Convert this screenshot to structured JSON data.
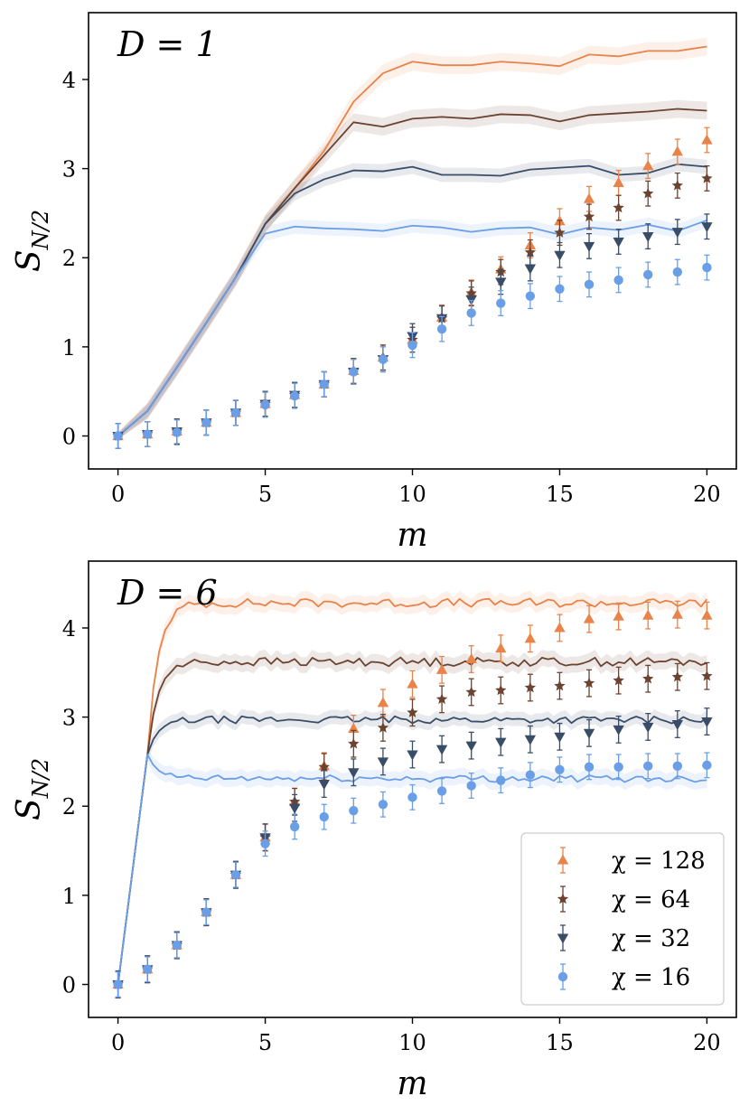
{
  "colors": {
    "chi128": "#E8834A",
    "chi64": "#6B4330",
    "chi32": "#3A4D68",
    "chi16": "#6A9EE6"
  },
  "chart_data": [
    {
      "type": "line",
      "annotation": "D = 1",
      "xlabel": "m",
      "ylabel": "S_{N/2}",
      "xlim": [
        -1,
        21
      ],
      "ylim": [
        -0.37,
        4.75
      ],
      "xticks": [
        "0",
        "5",
        "10",
        "15",
        "20"
      ],
      "yticks": [
        "0",
        "1",
        "2",
        "3",
        "4"
      ],
      "series": [
        {
          "name": "χ = 128",
          "color_key": "chi128",
          "marker": "triangle-up",
          "line_x": [
            0,
            1,
            2,
            3,
            4,
            5,
            6,
            7,
            8,
            9,
            10,
            11,
            12,
            13,
            14,
            15,
            16,
            17,
            18,
            19,
            20
          ],
          "line_y": [
            0.0,
            0.28,
            0.77,
            1.27,
            1.78,
            2.38,
            2.78,
            3.2,
            3.75,
            4.07,
            4.2,
            4.16,
            4.16,
            4.2,
            4.18,
            4.15,
            4.28,
            4.26,
            4.32,
            4.32,
            4.37
          ],
          "line_err": 0.1,
          "marker_x": [
            0,
            1,
            2,
            3,
            4,
            5,
            6,
            7,
            8,
            9,
            10,
            11,
            12,
            13,
            14,
            15,
            16,
            17,
            18,
            19,
            20
          ],
          "marker_y": [
            0.0,
            0.02,
            0.05,
            0.15,
            0.26,
            0.36,
            0.46,
            0.58,
            0.73,
            0.88,
            1.08,
            1.33,
            1.61,
            1.87,
            2.14,
            2.41,
            2.66,
            2.84,
            3.03,
            3.19,
            3.32
          ],
          "marker_err": 0.14
        },
        {
          "name": "χ = 64",
          "color_key": "chi64",
          "marker": "star",
          "line_x": [
            0,
            1,
            2,
            3,
            4,
            5,
            6,
            7,
            8,
            9,
            10,
            11,
            12,
            13,
            14,
            15,
            16,
            17,
            18,
            19,
            20
          ],
          "line_y": [
            0.0,
            0.28,
            0.77,
            1.27,
            1.78,
            2.38,
            2.78,
            3.15,
            3.52,
            3.47,
            3.56,
            3.58,
            3.56,
            3.61,
            3.6,
            3.53,
            3.6,
            3.62,
            3.64,
            3.67,
            3.65
          ],
          "line_err": 0.1,
          "marker_x": [
            0,
            1,
            2,
            3,
            4,
            5,
            6,
            7,
            8,
            9,
            10,
            11,
            12,
            13,
            14,
            15,
            16,
            17,
            18,
            19,
            20
          ],
          "marker_y": [
            0.0,
            0.02,
            0.05,
            0.15,
            0.26,
            0.36,
            0.46,
            0.58,
            0.73,
            0.88,
            1.08,
            1.32,
            1.6,
            1.84,
            2.06,
            2.28,
            2.46,
            2.56,
            2.72,
            2.81,
            2.89
          ],
          "marker_err": 0.14
        },
        {
          "name": "χ = 32",
          "color_key": "chi32",
          "marker": "triangle-down",
          "line_x": [
            0,
            1,
            2,
            3,
            4,
            5,
            6,
            7,
            8,
            9,
            10,
            11,
            12,
            13,
            14,
            15,
            16,
            17,
            18,
            19,
            20
          ],
          "line_y": [
            0.0,
            0.28,
            0.77,
            1.27,
            1.78,
            2.38,
            2.72,
            2.88,
            2.98,
            2.97,
            3.02,
            2.93,
            2.93,
            2.92,
            2.99,
            3.01,
            3.03,
            2.93,
            2.95,
            3.05,
            3.02
          ],
          "line_err": 0.08,
          "marker_x": [
            0,
            1,
            2,
            3,
            4,
            5,
            6,
            7,
            8,
            9,
            10,
            11,
            12,
            13,
            14,
            15,
            16,
            17,
            18,
            19,
            20
          ],
          "marker_y": [
            0.0,
            0.02,
            0.05,
            0.15,
            0.26,
            0.36,
            0.46,
            0.58,
            0.72,
            0.86,
            1.12,
            1.32,
            1.53,
            1.73,
            1.88,
            2.03,
            2.13,
            2.18,
            2.24,
            2.29,
            2.35
          ],
          "marker_err": 0.14
        },
        {
          "name": "χ = 16",
          "color_key": "chi16",
          "marker": "circle",
          "line_x": [
            0,
            1,
            2,
            3,
            4,
            5,
            6,
            7,
            8,
            9,
            10,
            11,
            12,
            13,
            14,
            15,
            16,
            17,
            18,
            19,
            20
          ],
          "line_y": [
            0.0,
            0.28,
            0.77,
            1.27,
            1.78,
            2.27,
            2.35,
            2.33,
            2.32,
            2.3,
            2.36,
            2.34,
            2.29,
            2.33,
            2.34,
            2.26,
            2.34,
            2.31,
            2.37,
            2.3,
            2.42
          ],
          "line_err": 0.08,
          "marker_x": [
            0,
            1,
            2,
            3,
            4,
            5,
            6,
            7,
            8,
            9,
            10,
            11,
            12,
            13,
            14,
            15,
            16,
            17,
            18,
            19,
            20
          ],
          "marker_y": [
            0.0,
            0.02,
            0.04,
            0.15,
            0.26,
            0.35,
            0.45,
            0.58,
            0.72,
            0.86,
            1.02,
            1.2,
            1.38,
            1.49,
            1.57,
            1.65,
            1.7,
            1.75,
            1.81,
            1.84,
            1.89
          ],
          "marker_err": 0.14
        }
      ]
    },
    {
      "type": "line",
      "annotation": "D = 6",
      "xlabel": "m",
      "ylabel": "S_{N/2}",
      "xlim": [
        -1,
        21
      ],
      "ylim": [
        -0.37,
        4.75
      ],
      "xticks": [
        "0",
        "5",
        "10",
        "15",
        "20"
      ],
      "yticks": [
        "0",
        "1",
        "2",
        "3",
        "4"
      ],
      "legend": {
        "position": "lower-right"
      },
      "series": [
        {
          "name": "χ = 128",
          "color_key": "chi128",
          "marker": "triangle-up",
          "plateau": 4.28,
          "line_err": 0.09,
          "line_wobble": 0.05,
          "marker_x": [
            0,
            1,
            2,
            3,
            4,
            5,
            6,
            7,
            8,
            9,
            10,
            11,
            12,
            13,
            14,
            15,
            16,
            17,
            18,
            19,
            20
          ],
          "marker_y": [
            0.0,
            0.17,
            0.44,
            0.81,
            1.23,
            1.65,
            2.05,
            2.45,
            2.87,
            3.16,
            3.37,
            3.53,
            3.65,
            3.77,
            3.88,
            4.0,
            4.1,
            4.13,
            4.14,
            4.15,
            4.14
          ],
          "marker_err": 0.15
        },
        {
          "name": "χ = 64",
          "color_key": "chi64",
          "marker": "star",
          "plateau": 3.62,
          "line_err": 0.09,
          "line_wobble": 0.05,
          "marker_x": [
            0,
            1,
            2,
            3,
            4,
            5,
            6,
            7,
            8,
            9,
            10,
            11,
            12,
            13,
            14,
            15,
            16,
            17,
            18,
            19,
            20
          ],
          "marker_y": [
            0.0,
            0.17,
            0.44,
            0.81,
            1.23,
            1.65,
            2.05,
            2.44,
            2.7,
            2.88,
            3.05,
            3.2,
            3.28,
            3.3,
            3.33,
            3.35,
            3.38,
            3.41,
            3.43,
            3.45,
            3.46
          ],
          "marker_err": 0.15
        },
        {
          "name": "χ = 32",
          "color_key": "chi32",
          "marker": "triangle-down",
          "plateau": 2.97,
          "line_err": 0.08,
          "line_wobble": 0.04,
          "marker_x": [
            0,
            1,
            2,
            3,
            4,
            5,
            6,
            7,
            8,
            9,
            10,
            11,
            12,
            13,
            14,
            15,
            16,
            17,
            18,
            19,
            20
          ],
          "marker_y": [
            0.0,
            0.17,
            0.44,
            0.81,
            1.23,
            1.65,
            1.98,
            2.25,
            2.38,
            2.5,
            2.58,
            2.64,
            2.68,
            2.72,
            2.75,
            2.78,
            2.82,
            2.86,
            2.89,
            2.92,
            2.95
          ],
          "marker_err": 0.15
        },
        {
          "name": "χ = 16",
          "color_key": "chi16",
          "marker": "circle",
          "plateau": 2.31,
          "line_err": 0.09,
          "line_wobble": 0.04,
          "marker_x": [
            0,
            1,
            2,
            3,
            4,
            5,
            6,
            7,
            8,
            9,
            10,
            11,
            12,
            13,
            14,
            15,
            16,
            17,
            18,
            19,
            20
          ],
          "marker_y": [
            0.0,
            0.17,
            0.44,
            0.81,
            1.23,
            1.58,
            1.77,
            1.88,
            1.95,
            2.02,
            2.1,
            2.17,
            2.23,
            2.29,
            2.35,
            2.41,
            2.44,
            2.44,
            2.45,
            2.45,
            2.46
          ],
          "marker_err": 0.14
        }
      ]
    }
  ]
}
